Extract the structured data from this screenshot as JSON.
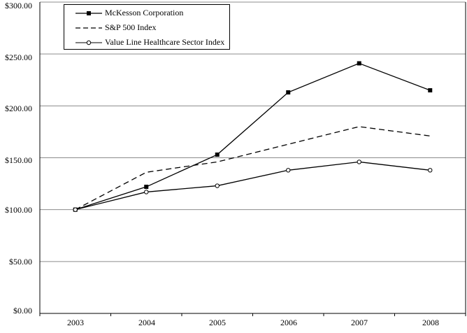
{
  "chart_data": {
    "type": "line",
    "title": "",
    "xlabel": "",
    "ylabel": "",
    "x": [
      "2003",
      "2004",
      "2005",
      "2006",
      "2007",
      "2008"
    ],
    "series": [
      {
        "name": "McKesson Corporation",
        "values": [
          100,
          122,
          153,
          213,
          241,
          215
        ],
        "marker": "square",
        "line": "solid"
      },
      {
        "name": "S&P 500 Index",
        "values": [
          100,
          136,
          146,
          163,
          180,
          171
        ],
        "marker": "none",
        "line": "dashed"
      },
      {
        "name": "Value Line Healthcare Sector Index",
        "values": [
          100,
          117,
          123,
          138,
          146,
          138
        ],
        "marker": "circle",
        "line": "solid"
      }
    ],
    "ylim": [
      0,
      300
    ],
    "ytick_interval": 50,
    "y_tick_labels": [
      "$0.00",
      "$50.00",
      "$100.00",
      "$150.00",
      "$200.00",
      "$250.00",
      "$300.00"
    ],
    "grid": "horizontal",
    "legend_position": "top-left"
  },
  "colors": {
    "series": "#000000",
    "grid": "#8c8c8c",
    "axis": "#000000",
    "background": "#ffffff",
    "marker_fill": "#000000",
    "circle_fill": "#ffffff"
  }
}
